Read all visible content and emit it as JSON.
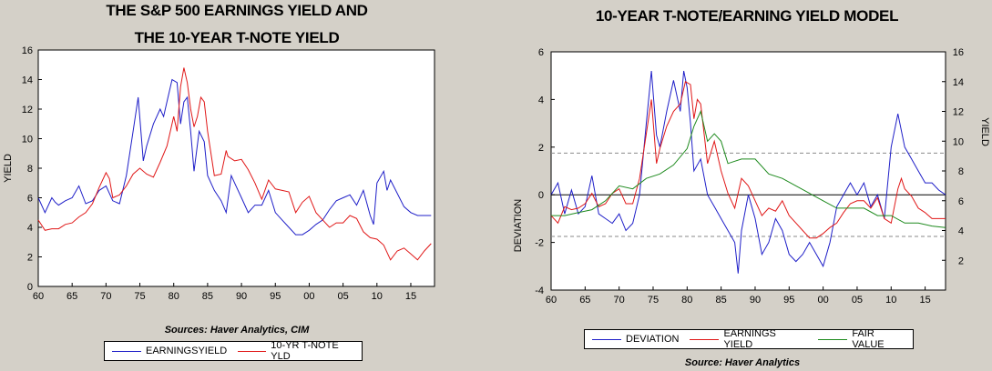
{
  "colors": {
    "blue": "#1f1fc8",
    "red": "#e01818",
    "green": "#1e8a1e"
  },
  "chart_data": [
    {
      "type": "line",
      "title_line1": "THE S&P 500 EARNINGS YIELD AND",
      "title_line2": "THE 10-YEAR T-NOTE YIELD",
      "ylabel": "YIELD",
      "xlim": [
        1960,
        2018.5
      ],
      "ylim": [
        0,
        16
      ],
      "x_ticks": [
        1960,
        1965,
        1970,
        1975,
        1980,
        1985,
        1990,
        1995,
        2000,
        2005,
        2010,
        2015
      ],
      "x_tick_labels": [
        "60",
        "65",
        "70",
        "75",
        "80",
        "85",
        "90",
        "95",
        "00",
        "05",
        "10",
        "15"
      ],
      "y_ticks": [
        "0",
        "2",
        "4",
        "6",
        "8",
        "10",
        "12",
        "14",
        "16"
      ],
      "grid": false,
      "source": "Sources:  Haver Analytics, CIM",
      "series": [
        {
          "name": "EARNINGSYIELD",
          "color": "blue",
          "x": [
            1960,
            1961,
            1962,
            1962.5,
            1963,
            1964,
            1965,
            1966,
            1967,
            1968,
            1969,
            1970,
            1971,
            1972,
            1973,
            1974,
            1974.75,
            1975.5,
            1976,
            1977,
            1978,
            1978.5,
            1979,
            1979.75,
            1980.5,
            1981,
            1981.5,
            1982,
            1982.5,
            1983,
            1983.75,
            1984.5,
            1985,
            1986,
            1987,
            1987.75,
            1988.5,
            1989,
            1990,
            1991,
            1992,
            1993,
            1994,
            1995,
            1996,
            1997,
            1998,
            1999,
            2000,
            2001,
            2002,
            2003,
            2004,
            2005,
            2006,
            2007,
            2008,
            2009,
            2009.5,
            2010,
            2011,
            2011.5,
            2012,
            2013,
            2014,
            2015,
            2016,
            2017,
            2018
          ],
          "y": [
            6.0,
            5.0,
            6.0,
            5.7,
            5.5,
            5.8,
            6.0,
            6.8,
            5.6,
            5.8,
            6.5,
            6.8,
            5.8,
            5.6,
            7.5,
            10.5,
            12.8,
            8.5,
            9.5,
            11.0,
            12.0,
            11.5,
            12.5,
            14.0,
            13.8,
            11.0,
            12.5,
            12.8,
            10.5,
            7.8,
            10.5,
            9.8,
            7.5,
            6.5,
            5.8,
            5.0,
            7.5,
            7.0,
            6.0,
            5.0,
            5.5,
            5.5,
            6.5,
            5.0,
            4.5,
            4.0,
            3.5,
            3.5,
            3.8,
            4.2,
            4.5,
            5.2,
            5.8,
            6.0,
            6.2,
            5.5,
            6.5,
            4.8,
            4.2,
            7.0,
            7.8,
            6.5,
            7.2,
            6.3,
            5.4,
            5.0,
            4.8,
            4.8,
            4.8
          ]
        },
        {
          "name": "10-YR T-NOTE YLD",
          "color": "red",
          "x": [
            1960,
            1961,
            1962,
            1963,
            1964,
            1965,
            1966,
            1967,
            1968,
            1969,
            1970,
            1970.5,
            1971,
            1972,
            1973,
            1974,
            1975,
            1976,
            1977,
            1978,
            1979,
            1980,
            1980.5,
            1981,
            1981.5,
            1982,
            1982.5,
            1983,
            1983.5,
            1984,
            1984.5,
            1985,
            1986,
            1987,
            1987.75,
            1988,
            1989,
            1990,
            1991,
            1992,
            1993,
            1994,
            1995,
            1996,
            1997,
            1998,
            1999,
            2000,
            2001,
            2002,
            2003,
            2004,
            2005,
            2006,
            2007,
            2008,
            2009,
            2010,
            2011,
            2012,
            2013,
            2014,
            2015,
            2016,
            2017,
            2018
          ],
          "y": [
            4.5,
            3.8,
            3.9,
            3.9,
            4.2,
            4.3,
            4.7,
            5.0,
            5.6,
            6.7,
            7.7,
            7.3,
            6.0,
            6.2,
            6.8,
            7.6,
            8.0,
            7.6,
            7.4,
            8.4,
            9.5,
            11.5,
            10.5,
            13.5,
            14.8,
            13.8,
            12.0,
            10.8,
            11.5,
            12.8,
            12.5,
            10.5,
            7.5,
            7.6,
            9.2,
            8.8,
            8.5,
            8.6,
            7.9,
            7.0,
            5.9,
            7.2,
            6.6,
            6.5,
            6.4,
            5.0,
            5.7,
            6.1,
            5.0,
            4.5,
            4.0,
            4.3,
            4.3,
            4.8,
            4.6,
            3.7,
            3.3,
            3.2,
            2.8,
            1.8,
            2.4,
            2.6,
            2.2,
            1.8,
            2.4,
            2.9
          ]
        }
      ]
    },
    {
      "type": "line",
      "title": "10-YEAR T-NOTE/EARNING YIELD MODEL",
      "ylabel_left": "DEVIATION",
      "ylabel_right": "YIELD",
      "xlim": [
        1960,
        2018
      ],
      "x_ticks": [
        1960,
        1965,
        1970,
        1975,
        1980,
        1985,
        1990,
        1995,
        2000,
        2005,
        2010,
        2015
      ],
      "x_tick_labels": [
        "60",
        "65",
        "70",
        "75",
        "80",
        "85",
        "90",
        "95",
        "00",
        "05",
        "10",
        "15"
      ],
      "left_ylim": [
        -4,
        6
      ],
      "left_ticks": [
        "-4",
        "-2",
        "0",
        "2",
        "4",
        "6"
      ],
      "right_ylim": [
        0,
        16
      ],
      "right_ticks": [
        "2",
        "4",
        "6",
        "8",
        "10",
        "12",
        "14",
        "16"
      ],
      "reference_lines": {
        "zero": 0,
        "upper_dashed": 1.75,
        "lower_dashed": -1.75
      },
      "grid": false,
      "source": "Source:  Haver Analytics",
      "series": [
        {
          "name": "DEVIATION",
          "color": "blue",
          "axis": "left",
          "x": [
            1960,
            1961,
            1962,
            1963,
            1964,
            1965,
            1966,
            1967,
            1968,
            1969,
            1970,
            1971,
            1972,
            1973,
            1974,
            1974.75,
            1975.5,
            1976,
            1977,
            1978,
            1979,
            1979.5,
            1980,
            1980.5,
            1981,
            1982,
            1983,
            1984,
            1985,
            1986,
            1987,
            1987.5,
            1988,
            1989,
            1990,
            1991,
            1992,
            1993,
            1994,
            1995,
            1996,
            1997,
            1998,
            1999,
            2000,
            2001,
            2002,
            2003,
            2004,
            2005,
            2006,
            2007,
            2008,
            2009,
            2010,
            2011,
            2012,
            2013,
            2014,
            2015,
            2016,
            2017,
            2018
          ],
          "y": [
            0.0,
            0.5,
            -0.8,
            0.2,
            -0.8,
            -0.5,
            0.8,
            -0.8,
            -1.0,
            -1.2,
            -0.8,
            -1.5,
            -1.2,
            0.0,
            3.0,
            5.2,
            2.5,
            2.0,
            3.5,
            4.8,
            3.5,
            5.2,
            4.5,
            3.0,
            1.0,
            1.5,
            0.0,
            -0.5,
            -1.0,
            -1.5,
            -2.0,
            -3.3,
            -1.5,
            0.0,
            -1.0,
            -2.5,
            -2.0,
            -1.0,
            -1.5,
            -2.5,
            -2.8,
            -2.5,
            -2.0,
            -2.5,
            -3.0,
            -2.0,
            -0.5,
            0.0,
            0.5,
            0.0,
            0.5,
            -0.5,
            0.0,
            -1.0,
            2.0,
            3.4,
            2.0,
            1.5,
            1.0,
            0.5,
            0.5,
            0.2,
            0.0
          ]
        },
        {
          "name": "EARNINGS YIELD",
          "color": "red",
          "axis": "right",
          "x": [
            1960,
            1961,
            1962,
            1963,
            1964,
            1965,
            1966,
            1967,
            1968,
            1969,
            1970,
            1971,
            1972,
            1973,
            1974,
            1974.75,
            1975.5,
            1976,
            1977,
            1978,
            1979,
            1979.75,
            1980.5,
            1981,
            1981.5,
            1982,
            1983,
            1984,
            1985,
            1986,
            1987,
            1988,
            1989,
            1990,
            1991,
            1992,
            1993,
            1994,
            1995,
            1996,
            1997,
            1998,
            1999,
            2000,
            2001,
            2002,
            2003,
            2004,
            2005,
            2006,
            2007,
            2008,
            2009,
            2010,
            2011,
            2011.5,
            2012,
            2013,
            2014,
            2015,
            2016,
            2017,
            2018
          ],
          "y": [
            5.0,
            4.5,
            5.6,
            5.4,
            5.5,
            5.8,
            6.5,
            5.6,
            5.8,
            6.5,
            6.8,
            5.8,
            5.8,
            7.5,
            10.5,
            12.8,
            8.5,
            9.5,
            11.0,
            12.0,
            12.5,
            14.0,
            13.8,
            11.5,
            12.8,
            12.5,
            8.5,
            10.0,
            8.0,
            6.5,
            5.5,
            7.5,
            7.0,
            6.0,
            5.0,
            5.5,
            5.3,
            6.0,
            5.0,
            4.5,
            4.0,
            3.5,
            3.5,
            3.8,
            4.2,
            4.5,
            5.2,
            5.8,
            6.0,
            6.0,
            5.5,
            6.2,
            4.8,
            4.5,
            6.8,
            7.5,
            6.8,
            6.3,
            5.5,
            5.2,
            4.8,
            4.8,
            4.8
          ]
        },
        {
          "name": "FAIR VALUE",
          "color": "green",
          "axis": "right",
          "x": [
            1960,
            1962,
            1964,
            1966,
            1968,
            1970,
            1972,
            1974,
            1976,
            1978,
            1980,
            1981,
            1982,
            1983,
            1984,
            1985,
            1986,
            1988,
            1990,
            1992,
            1994,
            1996,
            1998,
            2000,
            2002,
            2004,
            2006,
            2008,
            2010,
            2012,
            2014,
            2016,
            2018
          ],
          "y": [
            5.0,
            5.0,
            5.2,
            5.4,
            6.0,
            7.0,
            6.8,
            7.5,
            7.8,
            8.4,
            9.5,
            11.0,
            12.0,
            10.0,
            10.5,
            10.0,
            8.5,
            8.8,
            8.8,
            7.8,
            7.5,
            7.0,
            6.5,
            6.0,
            5.5,
            5.5,
            5.5,
            5.0,
            5.0,
            4.5,
            4.5,
            4.3,
            4.2
          ]
        }
      ]
    }
  ]
}
